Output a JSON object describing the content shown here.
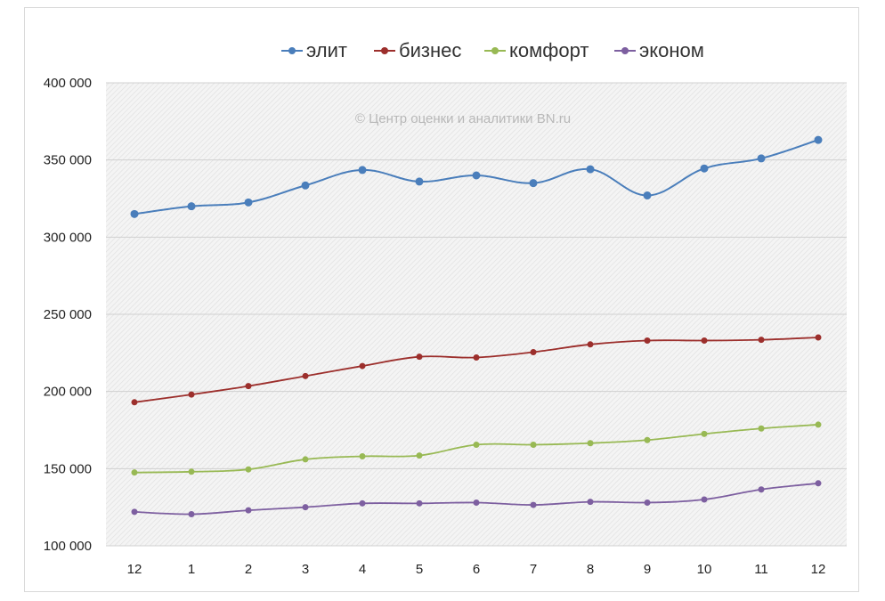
{
  "chart_data": {
    "type": "line",
    "title": "",
    "xlabel": "",
    "ylabel": "",
    "watermark": "© Центр оценки и аналитики BN.ru",
    "categories": [
      "12",
      "1",
      "2",
      "3",
      "4",
      "5",
      "6",
      "7",
      "8",
      "9",
      "10",
      "11",
      "12"
    ],
    "ylim": [
      100000,
      400000
    ],
    "yticks": [
      100000,
      150000,
      200000,
      250000,
      300000,
      350000,
      400000
    ],
    "ytick_labels": [
      "100 000",
      "150 000",
      "200 000",
      "250 000",
      "300 000",
      "350 000",
      "400 000"
    ],
    "grid": true,
    "legend_position": "top",
    "series": [
      {
        "name": "элит",
        "color": "#4a7ebb",
        "values": [
          315000,
          320000,
          322500,
          333500,
          343500,
          336000,
          340000,
          335000,
          344000,
          327000,
          344500,
          351000,
          363000
        ]
      },
      {
        "name": "бизнес",
        "color": "#9c2f2c",
        "values": [
          193000,
          198000,
          203500,
          210000,
          216500,
          222500,
          222000,
          225500,
          230500,
          233000,
          233000,
          233500,
          235000
        ]
      },
      {
        "name": "комфорт",
        "color": "#98b954",
        "values": [
          147500,
          148000,
          149500,
          156000,
          158000,
          158500,
          165500,
          165500,
          166500,
          168500,
          172500,
          176000,
          178500
        ]
      },
      {
        "name": "эконом",
        "color": "#7d5fa0",
        "values": [
          122000,
          120500,
          123000,
          125000,
          127500,
          127500,
          128000,
          126500,
          128500,
          128000,
          130000,
          136500,
          140500
        ]
      }
    ]
  }
}
